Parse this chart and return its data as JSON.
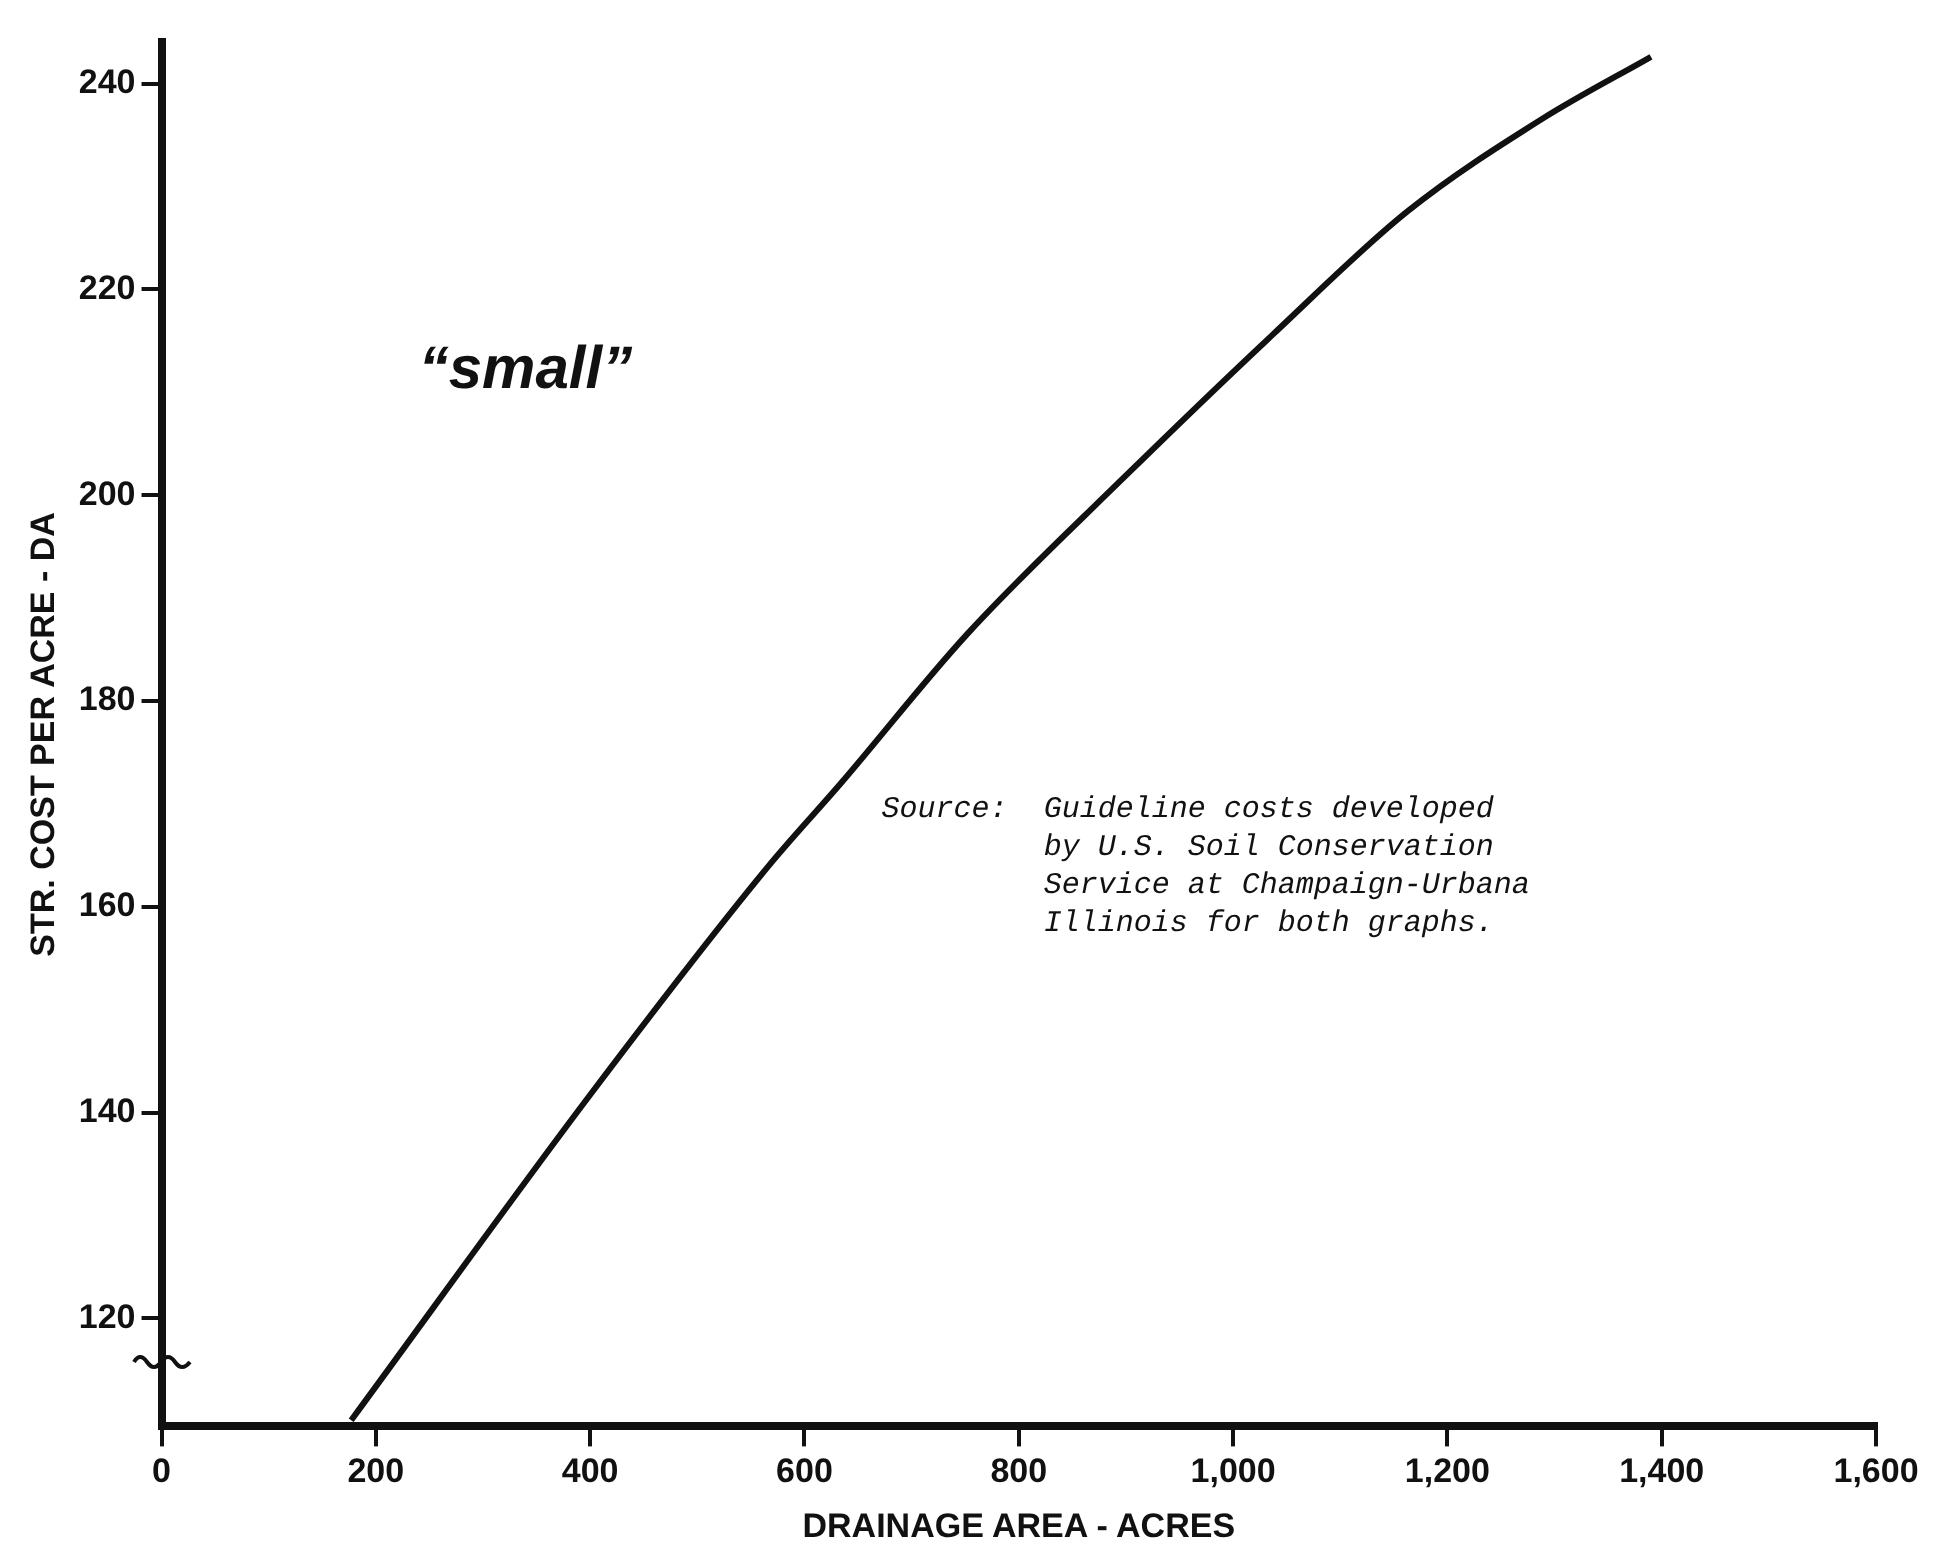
{
  "chart_data": {
    "type": "line",
    "xlabel": "DRAINAGE AREA - ACRES",
    "ylabel": "STR. COST PER ACRE - DA",
    "series": [
      {
        "color": "#111111",
        "x": [
          177,
          402,
          566,
          634,
          751,
          896,
          1038,
          1163,
          1289,
          1390
        ],
        "values": [
          110.1,
          142,
          163.9,
          172,
          186.4,
          201.5,
          215.7,
          227.6,
          236.6,
          242.6
        ]
      }
    ],
    "xlim": [
      0,
      1600
    ],
    "ylim": [
      109.5,
      244
    ],
    "xticks": [
      0,
      200,
      400,
      600,
      800,
      {
        "value": 1000,
        "label": "1,000"
      },
      {
        "value": 1200,
        "label": "1,200"
      },
      {
        "value": 1400,
        "label": "1,400"
      },
      {
        "value": 1600,
        "label": "1,600"
      }
    ],
    "yticks": [
      120,
      140,
      160,
      180,
      200,
      220,
      240
    ],
    "annotations": [
      "“small”",
      "Source:  Guideline costs developed\nby U.S. Soil Conservation\nService at Champaign-Urbana\nIllinois for both graphs."
    ],
    "marker": "none",
    "line_style": "solid",
    "grid": false,
    "legend": false
  }
}
